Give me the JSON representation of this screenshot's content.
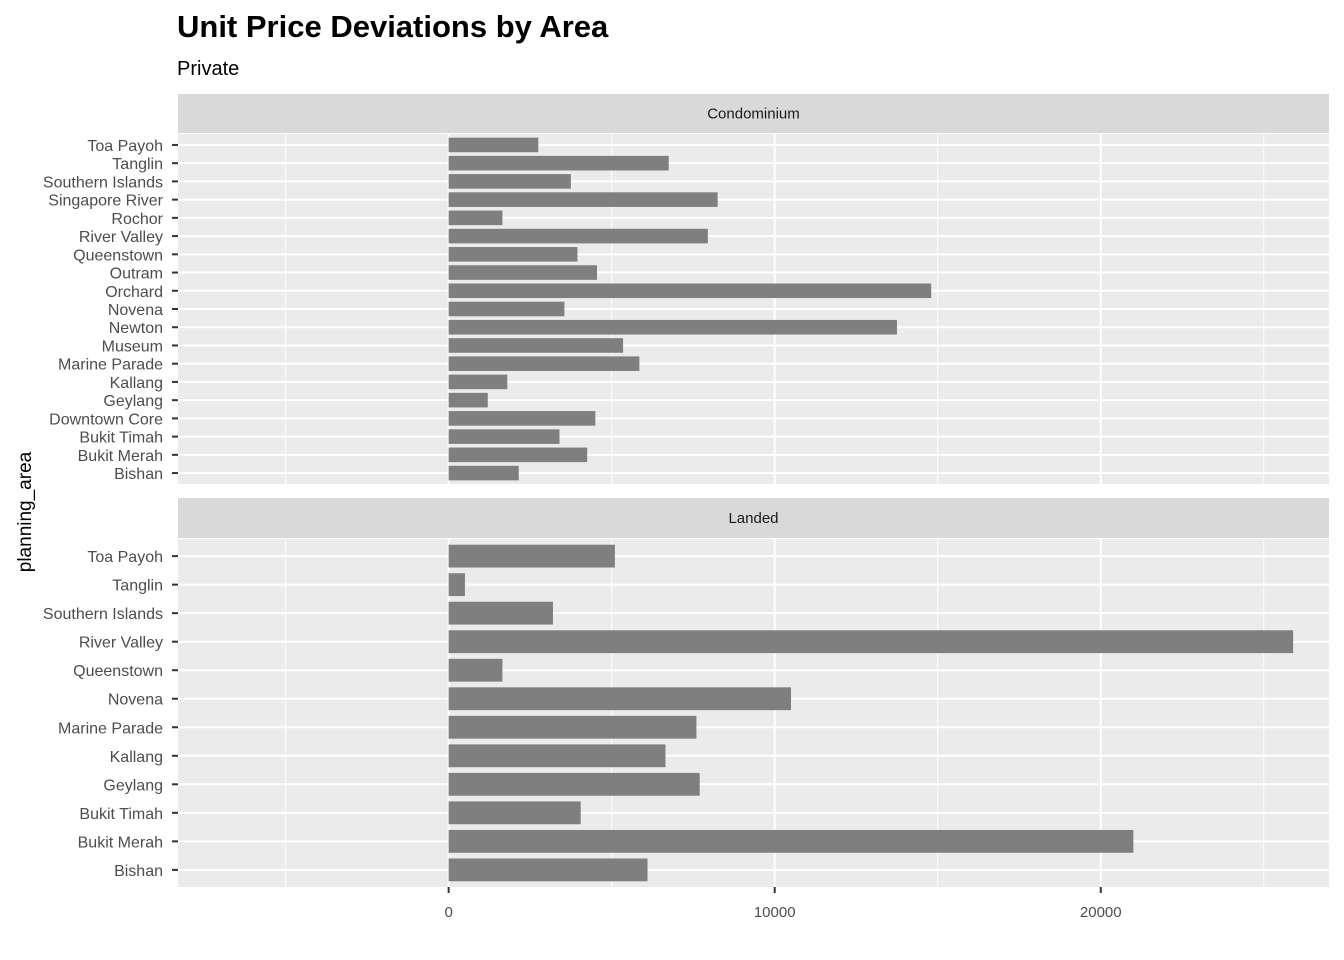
{
  "chart_data": {
    "type": "bar",
    "orientation": "horizontal",
    "title": "Unit Price Deviations by Area",
    "subtitle": "Private",
    "ylabel": "planning_area",
    "xlabel": "",
    "xlim": [
      -8300,
      27000
    ],
    "x_ticks": [
      0,
      10000,
      20000
    ],
    "grid": true,
    "bar_color": "#7f7f7f",
    "panel_background": "#ebebeb",
    "strip_background": "#d9d9d9",
    "facets": [
      {
        "name": "Condominium",
        "categories": [
          "Toa Payoh",
          "Tanglin",
          "Southern Islands",
          "Singapore River",
          "Rochor",
          "River Valley",
          "Queenstown",
          "Outram",
          "Orchard",
          "Novena",
          "Newton",
          "Museum",
          "Marine Parade",
          "Kallang",
          "Geylang",
          "Downtown Core",
          "Bukit Timah",
          "Bukit Merah",
          "Bishan"
        ],
        "values": [
          2750,
          6750,
          3750,
          8250,
          1650,
          7950,
          3950,
          4550,
          14800,
          3550,
          13750,
          5350,
          5850,
          1800,
          1200,
          4500,
          3400,
          4250,
          2150
        ]
      },
      {
        "name": "Landed",
        "categories": [
          "Toa Payoh",
          "Tanglin",
          "Southern Islands",
          "River Valley",
          "Queenstown",
          "Novena",
          "Marine Parade",
          "Kallang",
          "Geylang",
          "Bukit Timah",
          "Bukit Merah",
          "Bishan"
        ],
        "values": [
          5100,
          500,
          3200,
          25900,
          1650,
          10500,
          7600,
          6650,
          7700,
          4050,
          21000,
          6100
        ]
      }
    ]
  }
}
